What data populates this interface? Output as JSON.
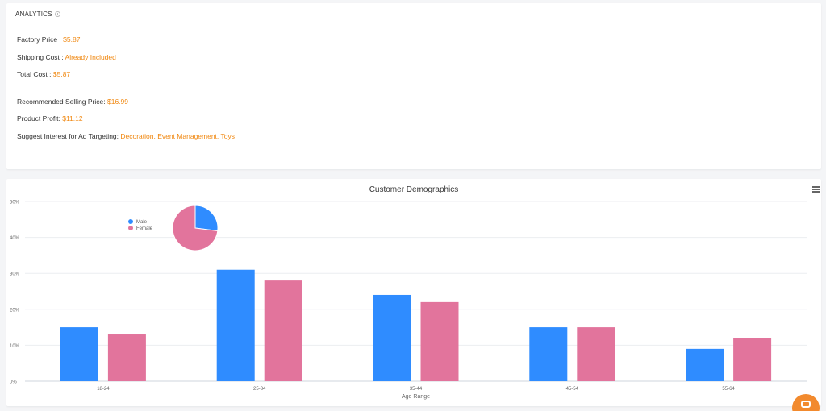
{
  "analytics": {
    "title": "ANALYTICS",
    "factory_price_label": "Factory Price : ",
    "factory_price_value": "$5.87",
    "shipping_cost_label": "Shipping Cost : ",
    "shipping_cost_value": "Already Included",
    "total_cost_label": "Total Cost : ",
    "total_cost_value": "$5.87",
    "selling_price_label": "Recommended Selling Price: ",
    "selling_price_value": "$16.99",
    "product_profit_label": "Product Profit: ",
    "product_profit_value": "$11.12",
    "ad_targeting_label": "Suggest Interest for Ad Targeting: ",
    "ad_targeting_value": "Decoration, Event Management, Toys"
  },
  "colors": {
    "accent": "#f0870f",
    "male": "#2f8cff",
    "female": "#e2749c"
  },
  "icons": {
    "menu": "hamburger-menu-icon",
    "chat": "chat-icon",
    "info": "info-icon"
  },
  "chart_data": {
    "type": "bar",
    "title": "Customer Demographics",
    "xlabel": "Age Range",
    "ylabel": "",
    "categories": [
      "18-24",
      "25-34",
      "35-44",
      "45-54",
      "55-64"
    ],
    "series": [
      {
        "name": "Male",
        "values": [
          15,
          31,
          24,
          15,
          9
        ],
        "color": "#2f8cff"
      },
      {
        "name": "Female",
        "values": [
          13,
          28,
          22,
          15,
          12
        ],
        "color": "#e2749c"
      }
    ],
    "ylim": [
      0,
      50
    ],
    "yticks": [
      "0%",
      "10%",
      "20%",
      "30%",
      "40%",
      "50%"
    ],
    "ytick_values": [
      0,
      10,
      20,
      30,
      40,
      50
    ],
    "grid": true,
    "legend": [
      "Male",
      "Female"
    ],
    "legend_position": "top-left",
    "pie": {
      "labels": [
        "Male",
        "Female"
      ],
      "values": [
        27,
        73
      ]
    }
  }
}
